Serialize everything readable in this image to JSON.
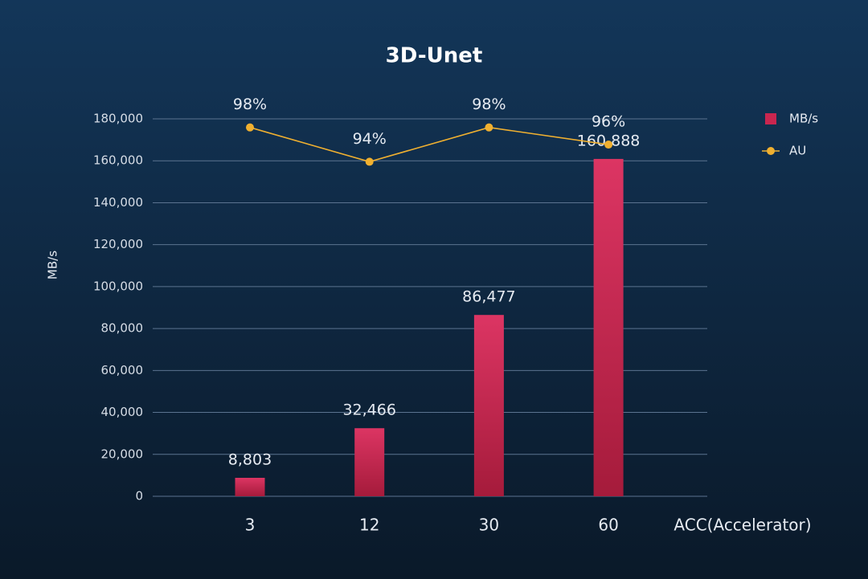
{
  "chart_data": {
    "type": "bar",
    "title": "3D-Unet",
    "x_label": "ACC(Accelerator)",
    "y_label": "MB/s",
    "categories": [
      "3",
      "12",
      "30",
      "60"
    ],
    "series": [
      {
        "name": "MB/s",
        "type": "bar",
        "color": "#c9264f",
        "values": [
          8803,
          32466,
          86477,
          160888
        ],
        "value_labels": [
          "8,803",
          "32,466",
          "86,477",
          "160,888"
        ]
      },
      {
        "name": "AU",
        "type": "line",
        "axis": "y2",
        "color": "#f0b030",
        "values": [
          98,
          94,
          98,
          96
        ],
        "value_labels": [
          "98%",
          "94%",
          "98%",
          "96%"
        ]
      }
    ],
    "ylim": [
      0,
      180000
    ],
    "yticks": [
      0,
      {
        "value": 20000,
        "label": "20,000"
      },
      {
        "value": 40000,
        "label": "40,000"
      },
      {
        "value": 60000,
        "label": "60,000"
      },
      {
        "value": 80000,
        "label": "80,000"
      },
      {
        "value": 100000,
        "label": "100,000"
      },
      {
        "value": 120000,
        "label": "120,000"
      },
      {
        "value": 140000,
        "label": "140,000"
      },
      {
        "value": 160000,
        "label": "160,000"
      },
      {
        "value": 180000,
        "label": "180,000"
      }
    ],
    "y2lim": [
      55,
      99
    ],
    "grid": true,
    "legend": "right"
  }
}
